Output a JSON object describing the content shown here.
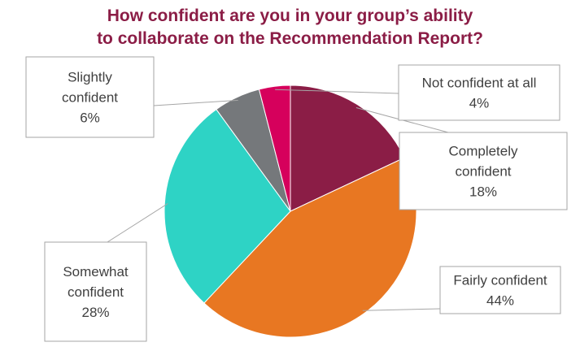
{
  "chart_data": {
    "type": "pie",
    "title_lines": [
      "How confident are you in your group’s ability",
      "to collaborate on the Recommendation Report?"
    ],
    "slices": [
      {
        "label": "Completely confident",
        "label_lines": [
          "Completely",
          "confident"
        ],
        "value": 18,
        "value_label": "18%",
        "color": "#8b1d46"
      },
      {
        "label": "Fairly confident",
        "label_lines": [
          "Fairly confident"
        ],
        "value": 44,
        "value_label": "44%",
        "color": "#e87722"
      },
      {
        "label": "Somewhat confident",
        "label_lines": [
          "Somewhat",
          "confident"
        ],
        "value": 28,
        "value_label": "28%",
        "color": "#2ed3c5"
      },
      {
        "label": "Slightly confident",
        "label_lines": [
          "Slightly",
          "confident"
        ],
        "value": 6,
        "value_label": "6%",
        "color": "#75787b"
      },
      {
        "label": "Not confident at all",
        "label_lines": [
          "Not confident at all"
        ],
        "value": 4,
        "value_label": "4%",
        "color": "#d6005c"
      }
    ]
  }
}
